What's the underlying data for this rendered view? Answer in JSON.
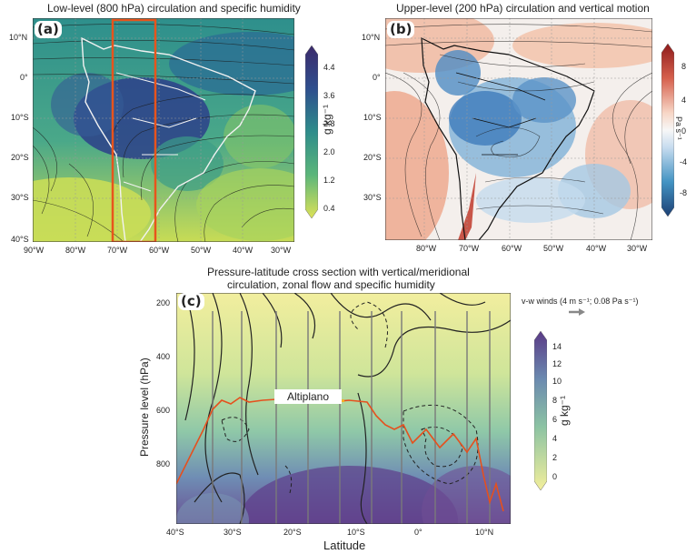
{
  "panel_a": {
    "label": "(a)",
    "title": "Low-level (800 hPa) circulation and specific humidity",
    "lat_ticks": [
      "10°N",
      "0°",
      "10°S",
      "20°S",
      "30°S",
      "40°S"
    ],
    "lon_ticks": [
      "90°W",
      "80°W",
      "70°W",
      "60°W",
      "50°W",
      "40°W",
      "30°W"
    ],
    "colorbar": {
      "ticks": [
        "4.4",
        "3.6",
        "2.8",
        "2.0",
        "1.2",
        "0.4"
      ],
      "unit": "g kg⁻¹"
    },
    "box_color": "#e8541c"
  },
  "panel_b": {
    "label": "(b)",
    "title": "Upper-level (200 hPa) circulation and vertical motion",
    "lat_ticks": [
      "10°N",
      "0°",
      "10°S",
      "20°S",
      "30°S"
    ],
    "lon_ticks": [
      "80°W",
      "70°W",
      "60°W",
      "50°W",
      "40°W",
      "30°W"
    ],
    "colorbar": {
      "ticks": [
        "8",
        "4",
        "0",
        "-4",
        "-8"
      ],
      "unit": "Pa s⁻¹"
    }
  },
  "panel_c": {
    "label": "(c)",
    "title_line1": "Pressure-latitude cross section with vertical/meridional",
    "title_line2": "circulation, zonal flow and specific humidity",
    "ylabel": "Pressure level (hPa)",
    "xlabel": "Latitude",
    "y_ticks": [
      "200",
      "400",
      "600",
      "800"
    ],
    "x_ticks": [
      "40°S",
      "30°S",
      "20°S",
      "10°S",
      "0°",
      "10°N"
    ],
    "annotation": "Altiplano",
    "legend": "v-w winds (4 m s⁻¹; 0.08 Pa s⁻¹)",
    "colorbar": {
      "ticks": [
        "14",
        "12",
        "10",
        "8",
        "6",
        "4",
        "2",
        "0"
      ],
      "unit": "g kg⁻¹"
    }
  }
}
